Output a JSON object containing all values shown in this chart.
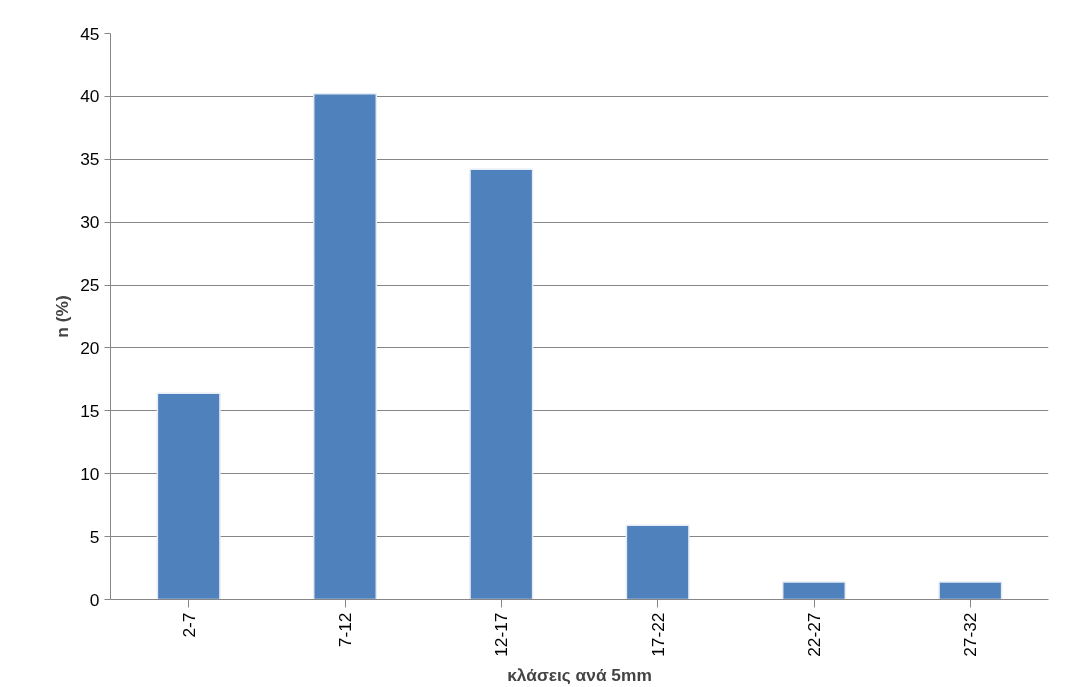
{
  "chart_data": {
    "type": "bar",
    "xlabel": "κλάσεις ανά 5mm",
    "ylabel": "n (%)",
    "categories": [
      "2-7",
      "7-12",
      "12-17",
      "17-22",
      "22-27",
      "27-32"
    ],
    "values": [
      16.4,
      40.2,
      34.2,
      5.9,
      1.4,
      1.4
    ],
    "color": "#4f81bd",
    "ylim": [
      0,
      45
    ],
    "yticks": [
      0,
      5,
      10,
      15,
      20,
      25,
      30,
      35,
      40,
      45
    ],
    "grid": "y"
  }
}
